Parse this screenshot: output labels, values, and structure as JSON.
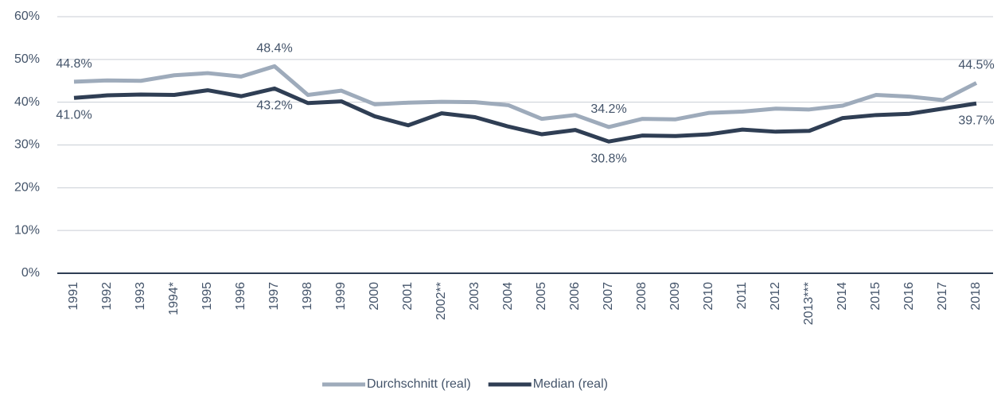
{
  "chart_data": {
    "type": "line",
    "categories": [
      "1991",
      "1992",
      "1993",
      "1994*",
      "1995",
      "1996",
      "1997",
      "1998",
      "1999",
      "2000",
      "2001",
      "2002**",
      "2003",
      "2004",
      "2005",
      "2006",
      "2007",
      "2008",
      "2009",
      "2010",
      "2011",
      "2012",
      "2013***",
      "2014",
      "2015",
      "2016",
      "2017",
      "2018"
    ],
    "series": [
      {
        "name": "Durchschnitt (real)",
        "color": "#9eabbb",
        "values": [
          44.8,
          45.1,
          45.0,
          46.3,
          46.8,
          46.0,
          48.4,
          41.7,
          42.7,
          39.5,
          39.9,
          40.1,
          40.0,
          39.3,
          36.1,
          37.0,
          34.2,
          36.1,
          36.0,
          37.5,
          37.8,
          38.5,
          38.3,
          39.2,
          41.7,
          41.3,
          40.5,
          44.5
        ],
        "value_labels": [
          "44.8%",
          null,
          null,
          null,
          null,
          null,
          "48.4%",
          null,
          null,
          null,
          null,
          null,
          null,
          null,
          null,
          null,
          "34.2%",
          null,
          null,
          null,
          null,
          null,
          null,
          null,
          null,
          null,
          null,
          "44.5%"
        ]
      },
      {
        "name": "Median (real)",
        "color": "#2f3e54",
        "values": [
          41.0,
          41.6,
          41.8,
          41.7,
          42.8,
          41.4,
          43.2,
          39.8,
          40.2,
          36.7,
          34.6,
          37.4,
          36.5,
          34.3,
          32.5,
          33.5,
          30.8,
          32.2,
          32.1,
          32.5,
          33.6,
          33.1,
          33.3,
          36.3,
          37.0,
          37.3,
          38.5,
          39.7
        ],
        "value_labels": [
          "41.0%",
          null,
          null,
          null,
          null,
          null,
          "43.2%",
          null,
          null,
          null,
          null,
          null,
          null,
          null,
          null,
          null,
          "30.8%",
          null,
          null,
          null,
          null,
          null,
          null,
          null,
          null,
          null,
          null,
          "39.7%"
        ]
      }
    ],
    "ylim": [
      0,
      60
    ],
    "yticks": [
      {
        "value": 0,
        "label": "0%"
      },
      {
        "value": 10,
        "label": "10%"
      },
      {
        "value": 20,
        "label": "20%"
      },
      {
        "value": 30,
        "label": "30%"
      },
      {
        "value": 40,
        "label": "40%"
      },
      {
        "value": 50,
        "label": "50%"
      },
      {
        "value": 60,
        "label": "60%"
      }
    ],
    "grid": true,
    "legend": "bottom"
  }
}
